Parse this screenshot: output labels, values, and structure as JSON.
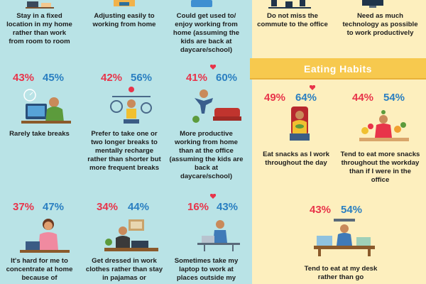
{
  "top_row": {
    "a": "Stay in a fixed location in my home rather than work from room to room",
    "b": "Adjusting easily to working from home",
    "c": "Could get used to/ enjoy working from home (assuming the kids are back at daycare/school)",
    "d": "Do not miss the commute to the office",
    "e": "Need as much technology as possible to work productively"
  },
  "row2": [
    {
      "p1": "43%",
      "p2": "45%",
      "text": "Rarely take breaks"
    },
    {
      "p1": "42%",
      "p2": "56%",
      "text": "Prefer to take one or two longer breaks to mentally recharge rather than shorter but more frequent breaks"
    },
    {
      "p1": "41%",
      "p2": "60%",
      "text": "More productive working from home than at the office (assuming the kids are back at daycare/school)"
    }
  ],
  "row3": [
    {
      "p1": "37%",
      "p2": "47%",
      "text": "It's hard for me to concentrate at home because of"
    },
    {
      "p1": "34%",
      "p2": "44%",
      "text": "Get dressed in work clothes rather than stay in pajamas or"
    },
    {
      "p1": "16%",
      "p2": "43%",
      "text": "Sometimes take my laptop to work at places outside my"
    }
  ],
  "eating": {
    "title": "Eating Habits",
    "items": [
      {
        "p1": "49%",
        "p2": "64%",
        "text": "Eat snacks as I work throughout the day"
      },
      {
        "p1": "44%",
        "p2": "54%",
        "text": "Tend to eat more snacks throughout the workday than if I were in the office"
      },
      {
        "p1": "43%",
        "p2": "54%",
        "text": "Tend to eat at my desk rather than go"
      }
    ]
  },
  "colors": {
    "red": "#e8344a",
    "blue": "#2a7fc1",
    "banner": "#f7c94e",
    "bg": "#b9e3e6",
    "panel": "#fdefbe"
  }
}
